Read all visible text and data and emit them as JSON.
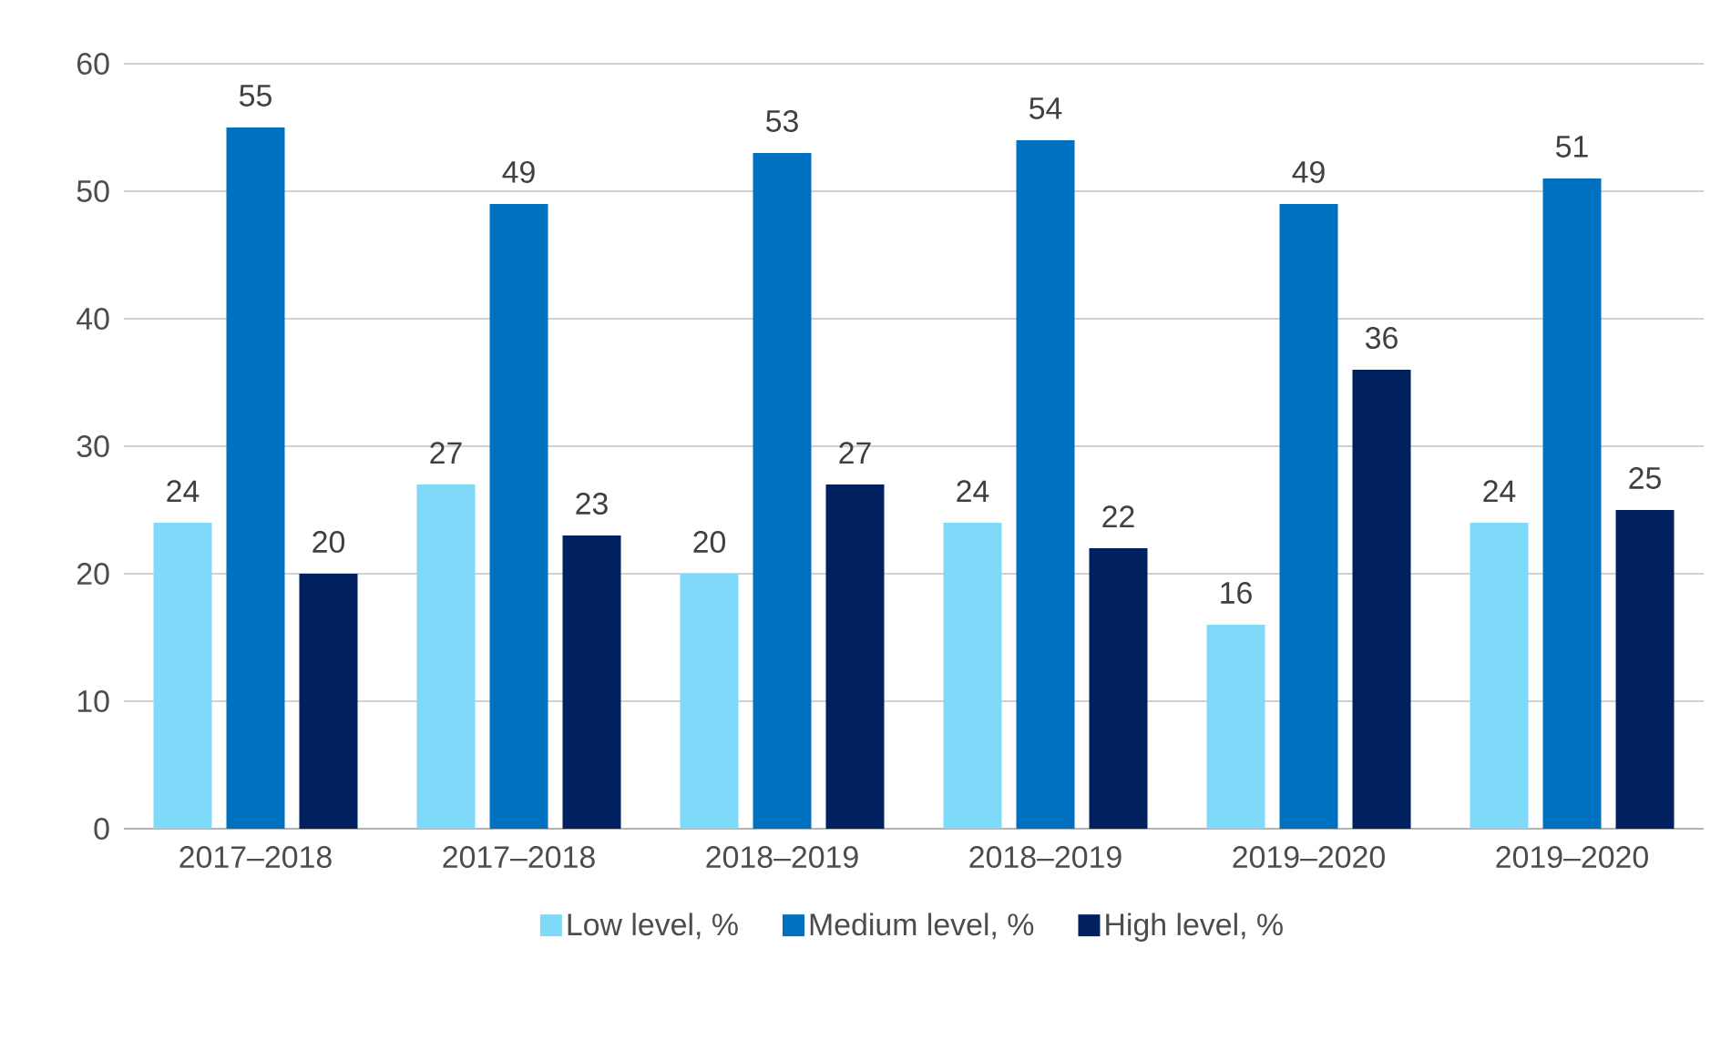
{
  "chart_data": {
    "type": "bar",
    "categories": [
      "2017–2018",
      "2017–2018",
      "2018–2019",
      "2018–2019",
      "2019–2020",
      "2019–2020"
    ],
    "series": [
      {
        "name": "Low level, %",
        "color": "#7fd9f9",
        "values": [
          24,
          27,
          20,
          24,
          16,
          24
        ]
      },
      {
        "name": "Medium level, %",
        "color": "#0070c0",
        "values": [
          55,
          49,
          53,
          54,
          49,
          51
        ]
      },
      {
        "name": "High level, %",
        "color": "#002060",
        "values": [
          20,
          23,
          27,
          22,
          36,
          25
        ]
      }
    ],
    "ylim": [
      0,
      60
    ],
    "yticks": [
      0,
      10,
      20,
      30,
      40,
      50,
      60
    ],
    "grid": "y",
    "legend": "bottom",
    "data_labels": true
  }
}
